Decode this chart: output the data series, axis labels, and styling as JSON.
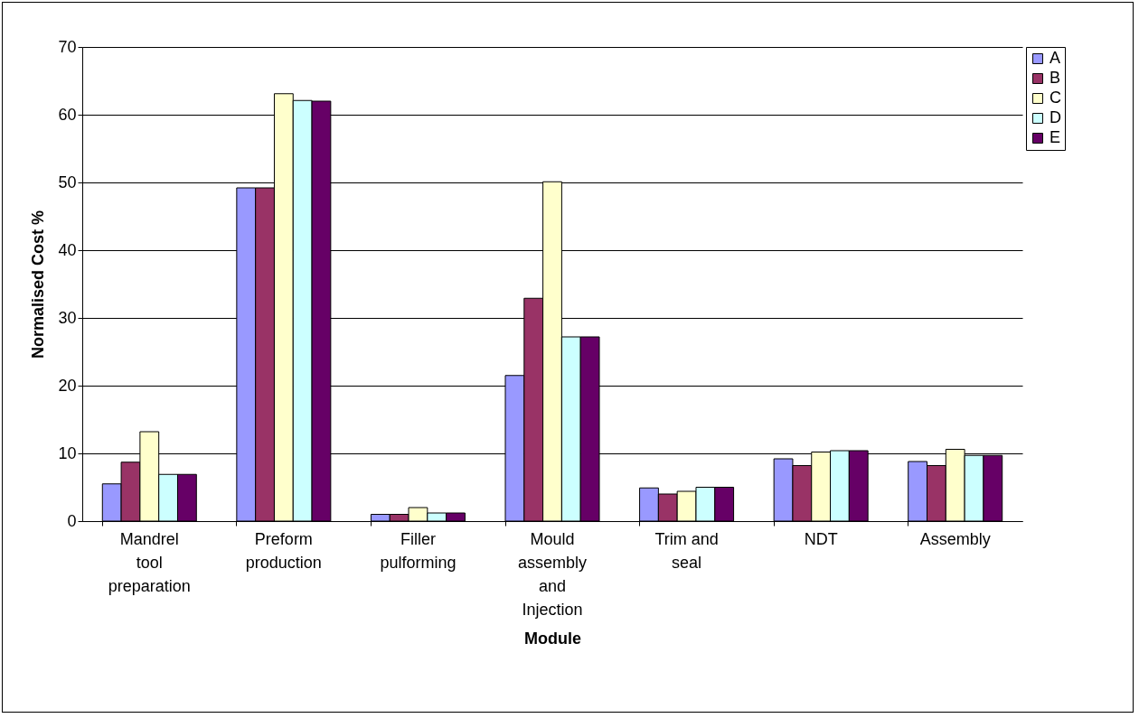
{
  "chart_data": {
    "type": "bar",
    "xlabel": "Module",
    "ylabel": "Normalised Cost %",
    "categories": [
      "Mandrel tool preparation",
      "Preform production",
      "Filler pulforming",
      "Mould assembly and Injection",
      "Trim and seal",
      "NDT",
      "Assembly"
    ],
    "series": [
      {
        "name": "A",
        "color": "#9999ff",
        "values": [
          5.5,
          49.2,
          1.0,
          21.5,
          4.9,
          9.2,
          8.8
        ]
      },
      {
        "name": "B",
        "color": "#993366",
        "values": [
          8.7,
          49.2,
          1.0,
          32.9,
          4.0,
          8.2,
          8.2
        ]
      },
      {
        "name": "C",
        "color": "#ffffcc",
        "values": [
          13.2,
          63.1,
          2.0,
          50.1,
          4.4,
          10.2,
          10.6
        ]
      },
      {
        "name": "D",
        "color": "#ccffff",
        "values": [
          6.9,
          62.1,
          1.2,
          27.2,
          5.0,
          10.4,
          9.7
        ]
      },
      {
        "name": "E",
        "color": "#660066",
        "values": [
          6.9,
          62.0,
          1.2,
          27.2,
          5.0,
          10.4,
          9.7
        ]
      }
    ],
    "ylim": [
      0,
      70
    ],
    "yticks": [
      0,
      10,
      20,
      30,
      40,
      50,
      60,
      70
    ],
    "grid": "y",
    "legend": "right"
  }
}
